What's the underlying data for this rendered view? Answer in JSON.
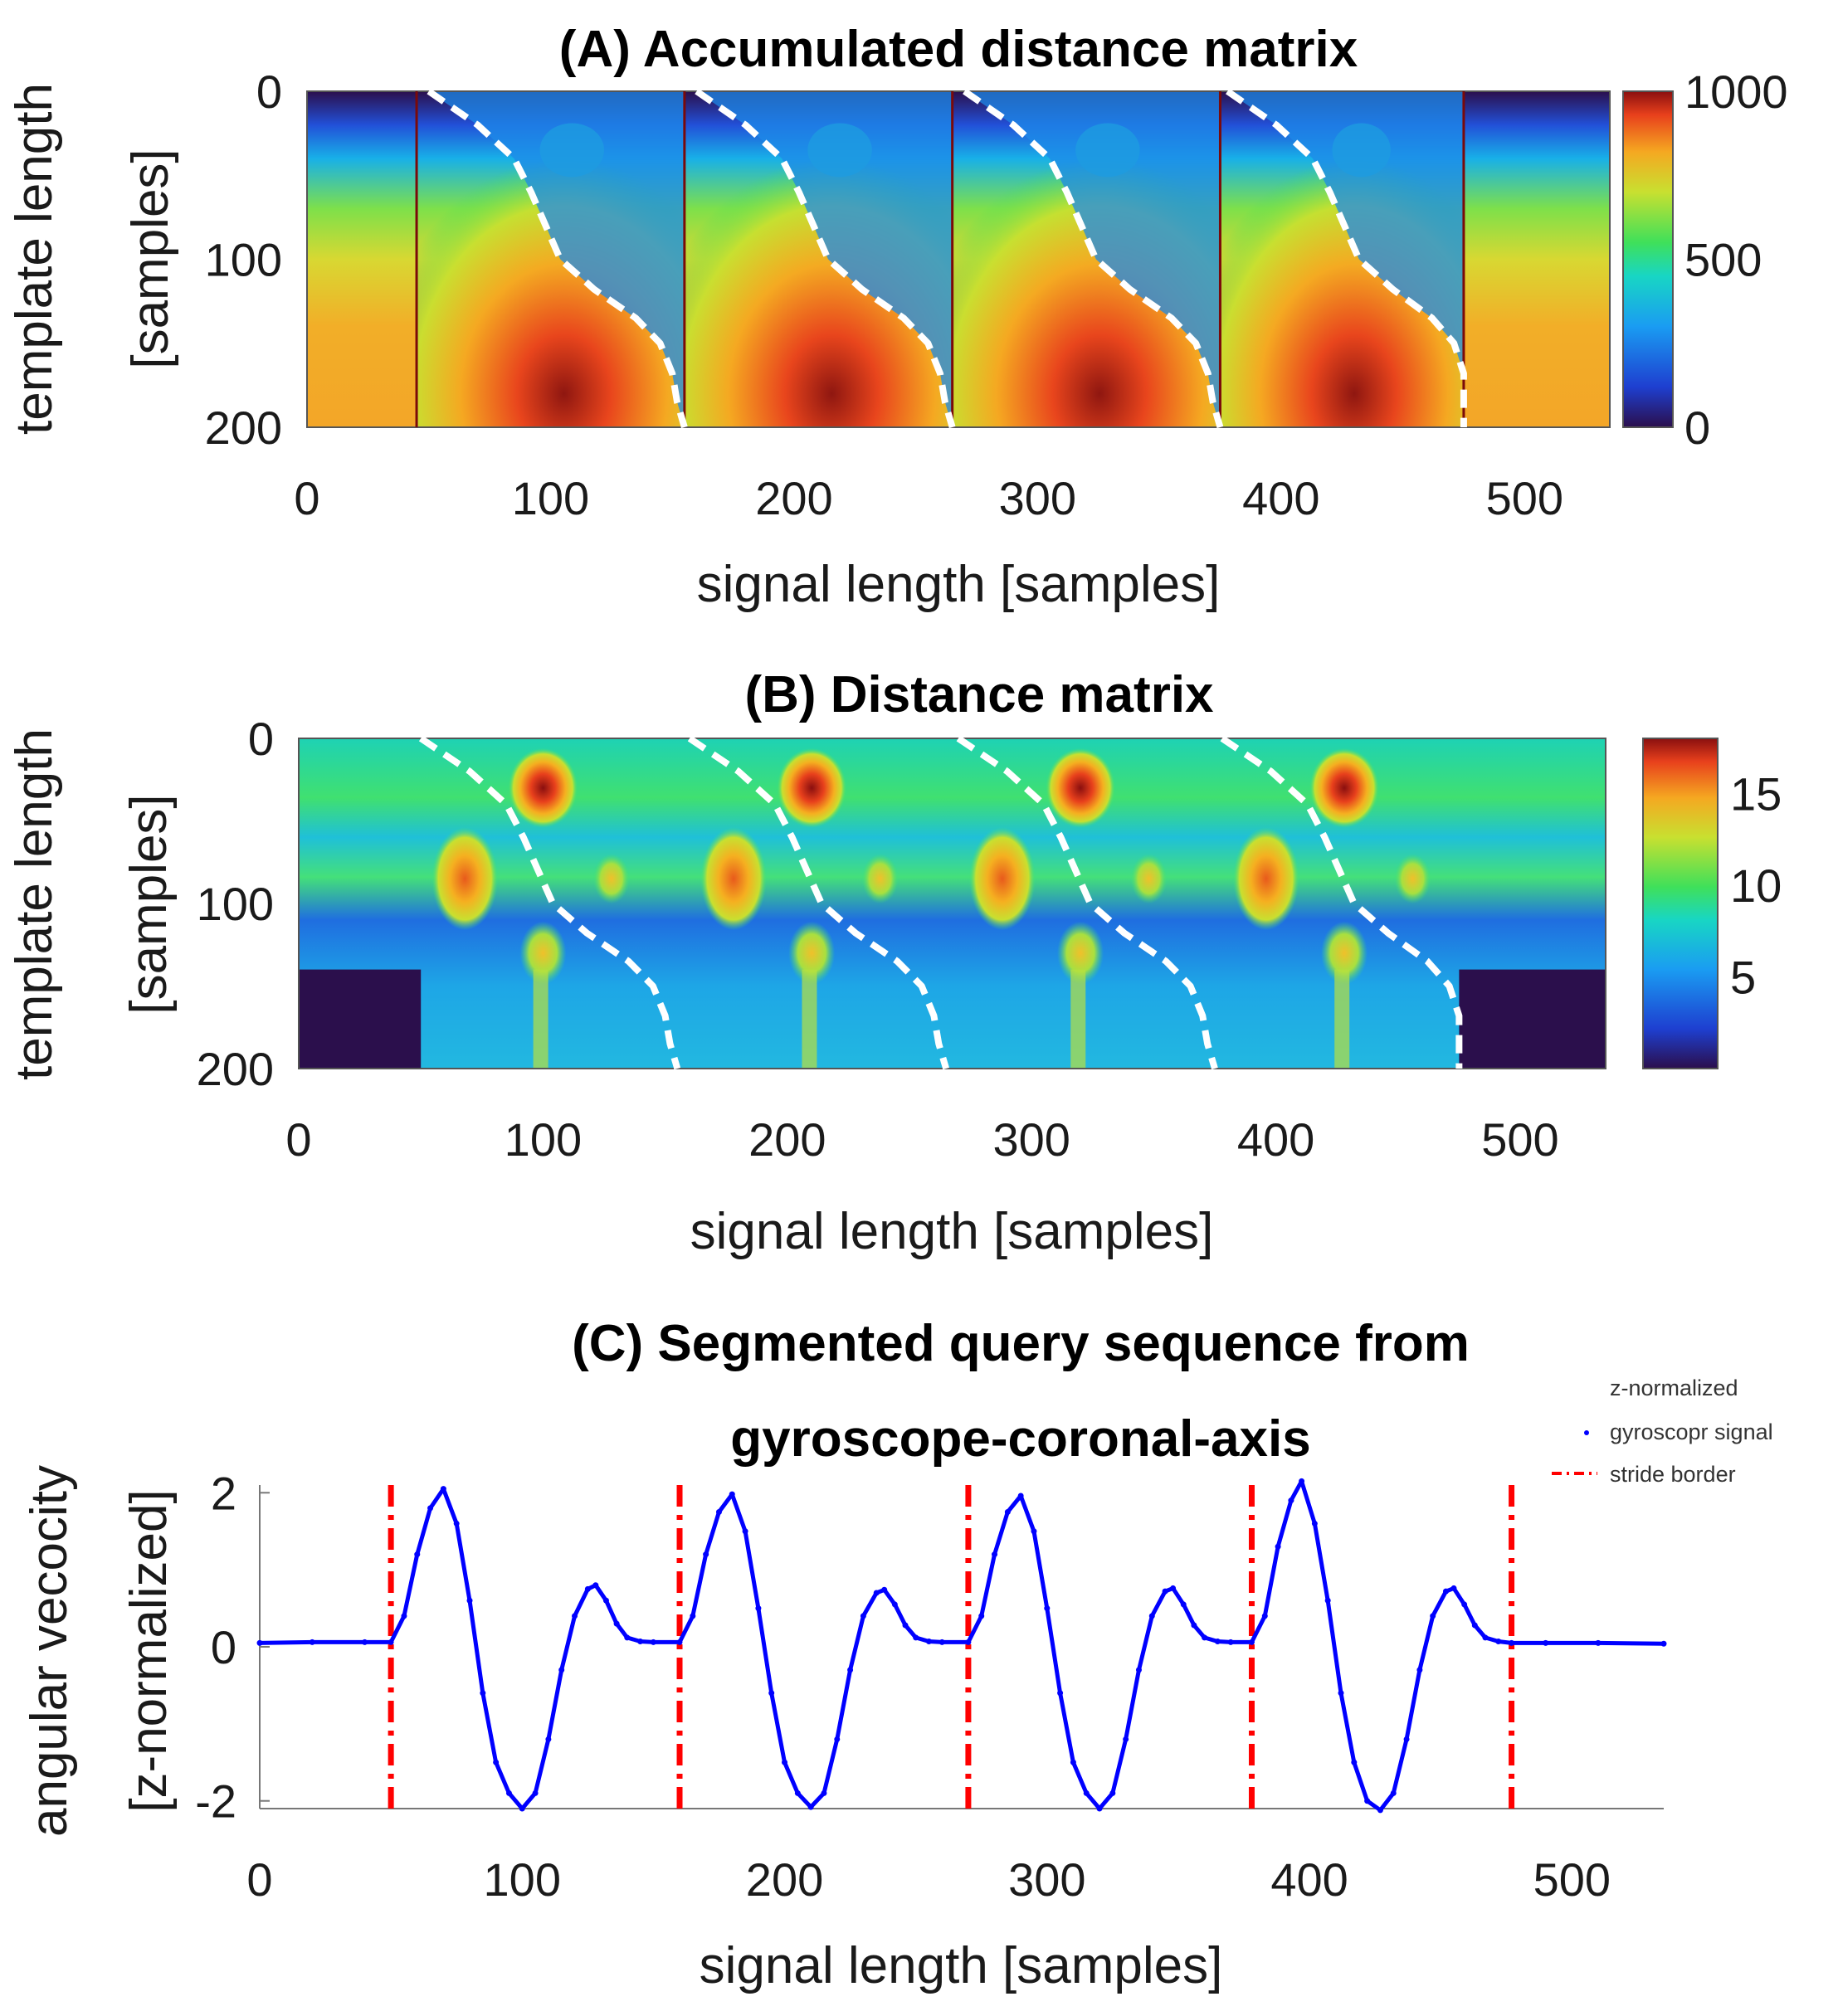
{
  "chart_data": [
    {
      "id": "A",
      "type": "heatmap",
      "title": "(A) Accumulated distance matrix",
      "xlabel": "signal length [samples]",
      "ylabel": [
        "template length",
        "[samples]"
      ],
      "xlim": [
        0,
        535
      ],
      "ylim": [
        200,
        0
      ],
      "xticks": [
        "0",
        "100",
        "200",
        "300",
        "400",
        "500"
      ],
      "yticks": [
        "0",
        "100",
        "200"
      ],
      "colorbar": {
        "min": 0,
        "max": 1000,
        "ticks": [
          "0",
          "500",
          "1000"
        ]
      },
      "stride_borders": [
        45,
        155,
        265,
        375,
        475
      ],
      "warping_paths": [
        [
          [
            50,
            0
          ],
          [
            70,
            20
          ],
          [
            85,
            40
          ],
          [
            92,
            60
          ],
          [
            98,
            80
          ],
          [
            104,
            100
          ],
          [
            118,
            118
          ],
          [
            135,
            135
          ],
          [
            145,
            150
          ],
          [
            150,
            168
          ],
          [
            152,
            185
          ],
          [
            155,
            200
          ]
        ],
        [
          [
            160,
            0
          ],
          [
            180,
            20
          ],
          [
            195,
            40
          ],
          [
            202,
            60
          ],
          [
            208,
            80
          ],
          [
            214,
            100
          ],
          [
            228,
            118
          ],
          [
            245,
            135
          ],
          [
            255,
            150
          ],
          [
            260,
            168
          ],
          [
            262,
            185
          ],
          [
            265,
            200
          ]
        ],
        [
          [
            270,
            0
          ],
          [
            290,
            20
          ],
          [
            305,
            40
          ],
          [
            312,
            60
          ],
          [
            318,
            80
          ],
          [
            324,
            100
          ],
          [
            338,
            118
          ],
          [
            355,
            135
          ],
          [
            365,
            150
          ],
          [
            370,
            168
          ],
          [
            372,
            185
          ],
          [
            375,
            200
          ]
        ],
        [
          [
            378,
            0
          ],
          [
            398,
            20
          ],
          [
            413,
            40
          ],
          [
            420,
            60
          ],
          [
            426,
            80
          ],
          [
            432,
            100
          ],
          [
            446,
            118
          ],
          [
            462,
            135
          ],
          [
            471,
            150
          ],
          [
            475,
            168
          ],
          [
            475,
            185
          ],
          [
            475,
            200
          ]
        ]
      ]
    },
    {
      "id": "B",
      "type": "heatmap",
      "title": "(B) Distance matrix",
      "xlabel": "signal length [samples]",
      "ylabel": [
        "template length",
        "[samples]"
      ],
      "xlim": [
        0,
        535
      ],
      "ylim": [
        200,
        0
      ],
      "xticks": [
        "0",
        "100",
        "200",
        "300",
        "400",
        "500"
      ],
      "yticks": [
        "0",
        "100",
        "200"
      ],
      "colorbar": {
        "min": 0,
        "max": 18,
        "ticks": [
          "5",
          "10",
          "15"
        ]
      },
      "warping_paths": [
        [
          [
            50,
            0
          ],
          [
            70,
            20
          ],
          [
            85,
            40
          ],
          [
            92,
            60
          ],
          [
            98,
            80
          ],
          [
            104,
            100
          ],
          [
            118,
            118
          ],
          [
            135,
            135
          ],
          [
            145,
            150
          ],
          [
            150,
            168
          ],
          [
            152,
            185
          ],
          [
            155,
            200
          ]
        ],
        [
          [
            160,
            0
          ],
          [
            180,
            20
          ],
          [
            195,
            40
          ],
          [
            202,
            60
          ],
          [
            208,
            80
          ],
          [
            214,
            100
          ],
          [
            228,
            118
          ],
          [
            245,
            135
          ],
          [
            255,
            150
          ],
          [
            260,
            168
          ],
          [
            262,
            185
          ],
          [
            265,
            200
          ]
        ],
        [
          [
            270,
            0
          ],
          [
            290,
            20
          ],
          [
            305,
            40
          ],
          [
            312,
            60
          ],
          [
            318,
            80
          ],
          [
            324,
            100
          ],
          [
            338,
            118
          ],
          [
            355,
            135
          ],
          [
            365,
            150
          ],
          [
            370,
            168
          ],
          [
            372,
            185
          ],
          [
            375,
            200
          ]
        ],
        [
          [
            378,
            0
          ],
          [
            398,
            20
          ],
          [
            413,
            40
          ],
          [
            420,
            60
          ],
          [
            426,
            80
          ],
          [
            432,
            100
          ],
          [
            446,
            118
          ],
          [
            462,
            135
          ],
          [
            471,
            150
          ],
          [
            475,
            168
          ],
          [
            475,
            185
          ],
          [
            475,
            200
          ]
        ]
      ]
    },
    {
      "id": "C",
      "type": "line",
      "title": [
        "(C) Segmented query sequence from",
        "gyroscope-coronal-axis"
      ],
      "xlabel": "signal length [samples]",
      "ylabel": [
        "angular vecocity",
        "[z-normalized]"
      ],
      "xlim": [
        0,
        535
      ],
      "ylim": [
        -2.1,
        2.1
      ],
      "xticks": [
        "0",
        "100",
        "200",
        "300",
        "400",
        "500"
      ],
      "yticks": [
        "-2",
        "0",
        "2"
      ],
      "legend": {
        "position": "top-right",
        "entries": [
          "z-normalized",
          "gyroscopr signal",
          "stride border"
        ]
      },
      "stride_borders": [
        50,
        160,
        270,
        378,
        477
      ],
      "series": [
        {
          "color": "#0000ff",
          "x": [
            0,
            20,
            40,
            50,
            55,
            60,
            65,
            70,
            75,
            80,
            85,
            90,
            95,
            100,
            105,
            110,
            115,
            120,
            125,
            128,
            132,
            136,
            140,
            145,
            150,
            160,
            165,
            170,
            175,
            180,
            185,
            190,
            195,
            200,
            205,
            210,
            215,
            220,
            225,
            230,
            235,
            238,
            242,
            246,
            250,
            255,
            260,
            270,
            275,
            280,
            285,
            290,
            295,
            300,
            305,
            310,
            315,
            320,
            325,
            330,
            335,
            340,
            345,
            348,
            352,
            356,
            360,
            365,
            370,
            378,
            383,
            388,
            393,
            397,
            402,
            407,
            412,
            417,
            422,
            427,
            432,
            437,
            442,
            447,
            452,
            455,
            459,
            463,
            467,
            472,
            477,
            490,
            510,
            535
          ],
          "y": [
            0.05,
            0.06,
            0.06,
            0.06,
            0.4,
            1.2,
            1.8,
            2.05,
            1.6,
            0.6,
            -0.6,
            -1.5,
            -1.9,
            -2.1,
            -1.9,
            -1.2,
            -0.3,
            0.4,
            0.75,
            0.8,
            0.6,
            0.3,
            0.12,
            0.07,
            0.06,
            0.06,
            0.4,
            1.2,
            1.75,
            1.98,
            1.5,
            0.5,
            -0.6,
            -1.5,
            -1.9,
            -2.08,
            -1.9,
            -1.2,
            -0.3,
            0.4,
            0.7,
            0.74,
            0.55,
            0.28,
            0.12,
            0.07,
            0.06,
            0.06,
            0.4,
            1.2,
            1.75,
            1.96,
            1.5,
            0.5,
            -0.6,
            -1.5,
            -1.9,
            -2.1,
            -1.9,
            -1.2,
            -0.3,
            0.4,
            0.72,
            0.76,
            0.55,
            0.28,
            0.12,
            0.07,
            0.06,
            0.06,
            0.4,
            1.3,
            1.9,
            2.15,
            1.6,
            0.6,
            -0.6,
            -1.5,
            -2.0,
            -2.12,
            -1.9,
            -1.2,
            -0.3,
            0.4,
            0.72,
            0.76,
            0.55,
            0.28,
            0.12,
            0.07,
            0.05,
            0.05,
            0.05,
            0.04
          ]
        }
      ]
    }
  ]
}
